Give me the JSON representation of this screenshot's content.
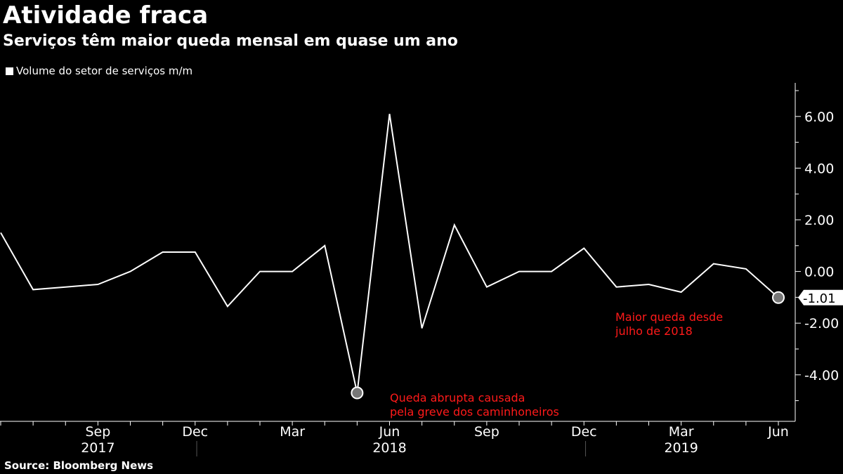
{
  "title": "Atividade fraca",
  "subtitle": "Serviços têm maior queda mensal em quase um ano",
  "legend": {
    "label": "Volume do setor de serviços m/m",
    "color": "#ffffff"
  },
  "source": "Source: Bloomberg News",
  "chart_data": {
    "type": "line",
    "title": "Atividade fraca",
    "subtitle": "Serviços têm maior queda mensal em quase um ano",
    "xlabel": "",
    "ylabel": "",
    "ylim": [
      -5.8,
      7.3
    ],
    "grid": false,
    "legend_position": "top-left",
    "y_axis_side": "right",
    "y_ticks": [
      "6.00",
      "4.00",
      "2.00",
      "0.00",
      "-2.00",
      "-4.00"
    ],
    "y_tick_values": [
      6,
      4,
      2,
      0,
      -2,
      -4
    ],
    "x_month_ticks": [
      {
        "label": "Sep",
        "date": "2017-09"
      },
      {
        "label": "Dec",
        "date": "2017-12"
      },
      {
        "label": "Mar",
        "date": "2018-03"
      },
      {
        "label": "Jun",
        "date": "2018-06"
      },
      {
        "label": "Sep",
        "date": "2018-09"
      },
      {
        "label": "Dec",
        "date": "2018-12"
      },
      {
        "label": "Mar",
        "date": "2019-03"
      },
      {
        "label": "Jun",
        "date": "2019-06"
      }
    ],
    "x_year_labels": [
      {
        "label": "2017",
        "date": "2017-09"
      },
      {
        "label": "2018",
        "date": "2018-06"
      },
      {
        "label": "2019",
        "date": "2019-03"
      }
    ],
    "series": [
      {
        "name": "Volume do setor de serviços m/m",
        "color": "#ffffff",
        "x": [
          "2017-06",
          "2017-07",
          "2017-08",
          "2017-09",
          "2017-10",
          "2017-11",
          "2017-12",
          "2018-01",
          "2018-02",
          "2018-03",
          "2018-04",
          "2018-05",
          "2018-06",
          "2018-07",
          "2018-08",
          "2018-09",
          "2018-10",
          "2018-11",
          "2018-12",
          "2019-01",
          "2019-02",
          "2019-03",
          "2019-04",
          "2019-05",
          "2019-06"
        ],
        "values": [
          1.5,
          -0.7,
          -0.6,
          -0.5,
          0.0,
          0.75,
          0.75,
          -1.35,
          0.0,
          0.0,
          1.0,
          -4.7,
          6.1,
          -2.2,
          1.8,
          -0.6,
          0.0,
          0.0,
          0.9,
          -0.6,
          -0.5,
          -0.8,
          0.3,
          0.1,
          -1.01
        ]
      }
    ],
    "last_value_label": "-1.01",
    "annotations": [
      {
        "lines": [
          "Queda abrupta causada",
          "pela greve dos caminhoneiros"
        ],
        "date": "2018-05",
        "color": "#ff1a1a"
      },
      {
        "lines": [
          "Maior queda desde",
          "julho de 2018"
        ],
        "date": "2019-06",
        "color": "#ff1a1a"
      }
    ]
  }
}
